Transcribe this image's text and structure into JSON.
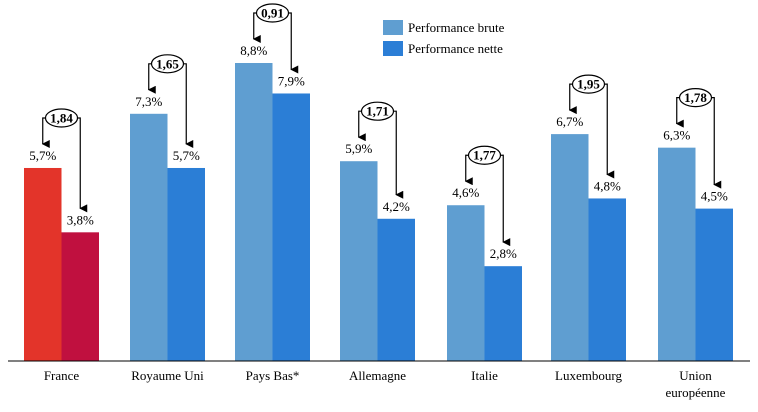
{
  "chart_data": {
    "type": "bar",
    "categories": [
      "France",
      "Royaume Uni",
      "Pays Bas*",
      "Allemagne",
      "Italie",
      "Luxembourg",
      "Union européenne"
    ],
    "category_lines": [
      [
        "France"
      ],
      [
        "Royaume Uni"
      ],
      [
        "Pays Bas*"
      ],
      [
        "Allemagne"
      ],
      [
        "Italie"
      ],
      [
        "Luxembourg"
      ],
      [
        "Union",
        "européenne"
      ]
    ],
    "series": [
      {
        "name": "Performance brute",
        "values": [
          5.7,
          7.3,
          8.8,
          5.9,
          4.6,
          6.7,
          6.3
        ],
        "labels": [
          "5,7%",
          "7,3%",
          "8,8%",
          "5,9%",
          "4,6%",
          "6,7%",
          "6,3%"
        ]
      },
      {
        "name": "Performance nette",
        "values": [
          3.8,
          5.7,
          7.9,
          4.2,
          2.8,
          4.8,
          4.5
        ],
        "labels": [
          "3,8%",
          "5,7%",
          "7,9%",
          "4,2%",
          "2,8%",
          "4,8%",
          "4,5%"
        ]
      }
    ],
    "ratios": [
      "1,84",
      "1,65",
      "0,91",
      "1,71",
      "1,77",
      "1,95",
      "1,78"
    ],
    "colors": {
      "gross": "#5f9ed1",
      "net": "#2b7ed6",
      "france_gross": "#e3342a",
      "france_net": "#c0103f"
    },
    "legend_position": "top-center",
    "grid": false,
    "ylim": [
      0,
      8.8
    ]
  }
}
